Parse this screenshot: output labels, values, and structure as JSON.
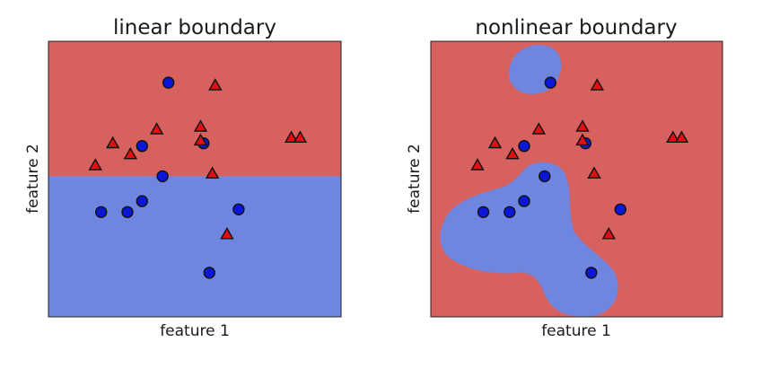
{
  "chart_data": [
    {
      "type": "scatter",
      "title": "linear boundary",
      "xlabel": "feature 1",
      "ylabel": "feature 2",
      "xlim": [
        0,
        10
      ],
      "ylim": [
        0,
        10
      ],
      "grid": false,
      "region_colors": {
        "class_0": "#6f86e0",
        "class_1": "#d6615e"
      },
      "boundary": {
        "kind": "linear",
        "y": 5.1
      },
      "series": [
        {
          "marker": "circle",
          "color": "#0a17d8",
          "points": [
            [
              4.1,
              8.5
            ],
            [
              5.3,
              6.3
            ],
            [
              3.2,
              6.2
            ],
            [
              3.9,
              5.1
            ],
            [
              3.2,
              4.2
            ],
            [
              2.7,
              3.8
            ],
            [
              1.8,
              3.8
            ],
            [
              6.5,
              3.9
            ],
            [
              5.5,
              1.6
            ]
          ]
        },
        {
          "marker": "triangle",
          "color": "#dd1111",
          "points": [
            [
              5.7,
              8.4
            ],
            [
              5.2,
              6.9
            ],
            [
              3.7,
              6.8
            ],
            [
              5.2,
              6.4
            ],
            [
              2.2,
              6.3
            ],
            [
              2.8,
              5.9
            ],
            [
              1.6,
              5.5
            ],
            [
              5.6,
              5.2
            ],
            [
              8.3,
              6.5
            ],
            [
              8.6,
              6.5
            ],
            [
              6.1,
              3.0
            ]
          ]
        }
      ]
    },
    {
      "type": "scatter",
      "title": "nonlinear boundary",
      "xlabel": "feature 1",
      "ylabel": "feature 2",
      "xlim": [
        0,
        10
      ],
      "ylim": [
        0,
        10
      ],
      "grid": false,
      "region_colors": {
        "class_0": "#6f86e0",
        "class_1": "#d6615e"
      },
      "boundary": {
        "kind": "nonlinear"
      },
      "series": [
        {
          "marker": "circle",
          "color": "#0a17d8",
          "points": [
            [
              4.1,
              8.5
            ],
            [
              5.3,
              6.3
            ],
            [
              3.2,
              6.2
            ],
            [
              3.9,
              5.1
            ],
            [
              3.2,
              4.2
            ],
            [
              2.7,
              3.8
            ],
            [
              1.8,
              3.8
            ],
            [
              6.5,
              3.9
            ],
            [
              5.5,
              1.6
            ]
          ]
        },
        {
          "marker": "triangle",
          "color": "#dd1111",
          "points": [
            [
              5.7,
              8.4
            ],
            [
              5.2,
              6.9
            ],
            [
              3.7,
              6.8
            ],
            [
              5.2,
              6.4
            ],
            [
              2.2,
              6.3
            ],
            [
              2.8,
              5.9
            ],
            [
              1.6,
              5.5
            ],
            [
              5.6,
              5.2
            ],
            [
              8.3,
              6.5
            ],
            [
              8.6,
              6.5
            ],
            [
              6.1,
              3.0
            ]
          ]
        }
      ]
    }
  ]
}
